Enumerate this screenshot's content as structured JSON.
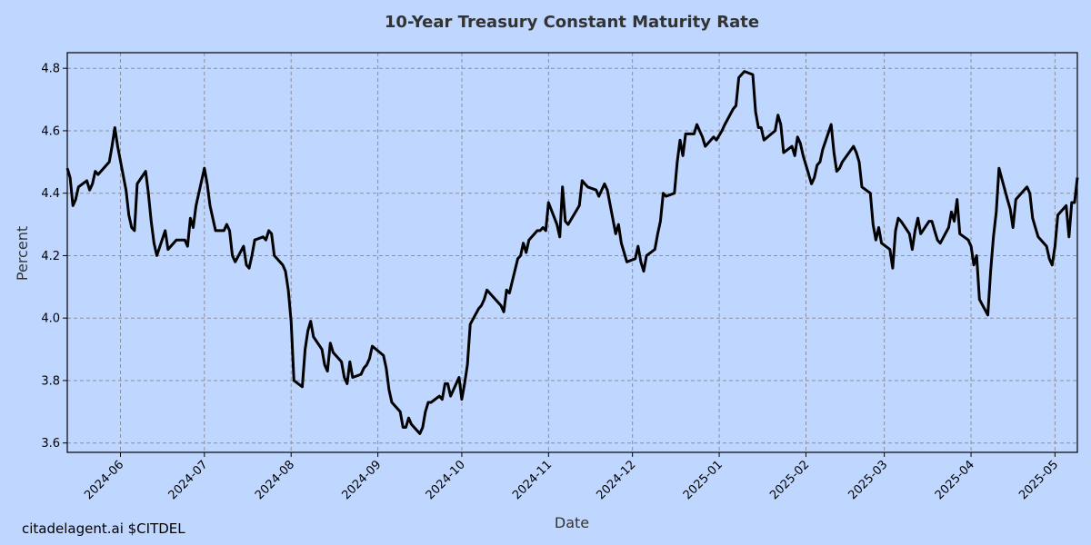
{
  "footer": "citadelagent.ai $CITDEL",
  "colors": {
    "background": "#bfd7ff",
    "line": "#000000",
    "grid": "#8a8f9e",
    "title": "#333333"
  },
  "chart_data": {
    "type": "line",
    "title": "10-Year Treasury Constant Maturity Rate",
    "xlabel": "Date",
    "ylabel": "Percent",
    "xlim": [
      "2024-05-13",
      "2025-05-09"
    ],
    "ylim": [
      3.57,
      4.85
    ],
    "xticks": [
      "2024-06",
      "2024-07",
      "2024-08",
      "2024-09",
      "2024-10",
      "2024-11",
      "2024-12",
      "2025-01",
      "2025-02",
      "2025-03",
      "2025-04",
      "2025-05"
    ],
    "yticks": [
      "3.6",
      "3.8",
      "4.0",
      "4.2",
      "4.4",
      "4.6",
      "4.8"
    ],
    "grid": true,
    "series": [
      {
        "x": [
          "2024-05-13",
          "2024-05-14",
          "2024-05-15",
          "2024-05-16",
          "2024-05-17",
          "2024-05-20",
          "2024-05-21",
          "2024-05-22",
          "2024-05-23",
          "2024-05-24",
          "2024-05-28",
          "2024-05-29",
          "2024-05-30",
          "2024-05-31",
          "2024-06-03",
          "2024-06-04",
          "2024-06-05",
          "2024-06-06",
          "2024-06-07",
          "2024-06-10",
          "2024-06-11",
          "2024-06-12",
          "2024-06-13",
          "2024-06-14",
          "2024-06-17",
          "2024-06-18",
          "2024-06-20",
          "2024-06-21",
          "2024-06-24",
          "2024-06-25",
          "2024-06-26",
          "2024-06-27",
          "2024-06-28",
          "2024-07-01",
          "2024-07-02",
          "2024-07-03",
          "2024-07-05",
          "2024-07-08",
          "2024-07-09",
          "2024-07-10",
          "2024-07-11",
          "2024-07-12",
          "2024-07-15",
          "2024-07-16",
          "2024-07-17",
          "2024-07-18",
          "2024-07-19",
          "2024-07-22",
          "2024-07-23",
          "2024-07-24",
          "2024-07-25",
          "2024-07-26",
          "2024-07-29",
          "2024-07-30",
          "2024-07-31",
          "2024-08-01",
          "2024-08-02",
          "2024-08-05",
          "2024-08-06",
          "2024-08-07",
          "2024-08-08",
          "2024-08-09",
          "2024-08-12",
          "2024-08-13",
          "2024-08-14",
          "2024-08-15",
          "2024-08-16",
          "2024-08-19",
          "2024-08-20",
          "2024-08-21",
          "2024-08-22",
          "2024-08-23",
          "2024-08-26",
          "2024-08-27",
          "2024-08-28",
          "2024-08-29",
          "2024-08-30",
          "2024-09-03",
          "2024-09-04",
          "2024-09-05",
          "2024-09-06",
          "2024-09-09",
          "2024-09-10",
          "2024-09-11",
          "2024-09-12",
          "2024-09-13",
          "2024-09-16",
          "2024-09-17",
          "2024-09-18",
          "2024-09-19",
          "2024-09-20",
          "2024-09-23",
          "2024-09-24",
          "2024-09-25",
          "2024-09-26",
          "2024-09-27",
          "2024-09-30",
          "2024-10-01",
          "2024-10-02",
          "2024-10-03",
          "2024-10-04",
          "2024-10-07",
          "2024-10-08",
          "2024-10-09",
          "2024-10-10",
          "2024-10-11",
          "2024-10-15",
          "2024-10-16",
          "2024-10-17",
          "2024-10-18",
          "2024-10-21",
          "2024-10-22",
          "2024-10-23",
          "2024-10-24",
          "2024-10-25",
          "2024-10-28",
          "2024-10-29",
          "2024-10-30",
          "2024-10-31",
          "2024-11-01",
          "2024-11-04",
          "2024-11-05",
          "2024-11-06",
          "2024-11-07",
          "2024-11-08",
          "2024-11-12",
          "2024-11-13",
          "2024-11-14",
          "2024-11-15",
          "2024-11-18",
          "2024-11-19",
          "2024-11-20",
          "2024-11-21",
          "2024-11-22",
          "2024-11-25",
          "2024-11-26",
          "2024-11-27",
          "2024-11-29",
          "2024-12-02",
          "2024-12-03",
          "2024-12-04",
          "2024-12-05",
          "2024-12-06",
          "2024-12-09",
          "2024-12-10",
          "2024-12-11",
          "2024-12-12",
          "2024-12-13",
          "2024-12-16",
          "2024-12-17",
          "2024-12-18",
          "2024-12-19",
          "2024-12-20",
          "2024-12-23",
          "2024-12-24",
          "2024-12-26",
          "2024-12-27",
          "2024-12-30",
          "2024-12-31",
          "2025-01-02",
          "2025-01-03",
          "2025-01-06",
          "2025-01-07",
          "2025-01-08",
          "2025-01-10",
          "2025-01-13",
          "2025-01-14",
          "2025-01-15",
          "2025-01-16",
          "2025-01-17",
          "2025-01-21",
          "2025-01-22",
          "2025-01-23",
          "2025-01-24",
          "2025-01-27",
          "2025-01-28",
          "2025-01-29",
          "2025-01-30",
          "2025-01-31",
          "2025-02-03",
          "2025-02-04",
          "2025-02-05",
          "2025-02-06",
          "2025-02-07",
          "2025-02-10",
          "2025-02-11",
          "2025-02-12",
          "2025-02-13",
          "2025-02-14",
          "2025-02-18",
          "2025-02-19",
          "2025-02-20",
          "2025-02-21",
          "2025-02-24",
          "2025-02-25",
          "2025-02-26",
          "2025-02-27",
          "2025-02-28",
          "2025-03-03",
          "2025-03-04",
          "2025-03-05",
          "2025-03-06",
          "2025-03-07",
          "2025-03-10",
          "2025-03-11",
          "2025-03-12",
          "2025-03-13",
          "2025-03-14",
          "2025-03-17",
          "2025-03-18",
          "2025-03-19",
          "2025-03-20",
          "2025-03-21",
          "2025-03-24",
          "2025-03-25",
          "2025-03-26",
          "2025-03-27",
          "2025-03-28",
          "2025-03-31",
          "2025-04-01",
          "2025-04-02",
          "2025-04-03",
          "2025-04-04",
          "2025-04-07",
          "2025-04-08",
          "2025-04-09",
          "2025-04-10",
          "2025-04-11",
          "2025-04-14",
          "2025-04-15",
          "2025-04-16",
          "2025-04-17",
          "2025-04-21",
          "2025-04-22",
          "2025-04-23",
          "2025-04-24",
          "2025-04-25",
          "2025-04-28",
          "2025-04-29",
          "2025-04-30",
          "2025-05-01",
          "2025-05-02",
          "2025-05-05",
          "2025-05-06",
          "2025-05-07",
          "2025-05-08",
          "2025-05-09"
        ],
        "y": [
          4.48,
          4.45,
          4.36,
          4.38,
          4.42,
          4.44,
          4.41,
          4.43,
          4.47,
          4.46,
          4.5,
          4.55,
          4.61,
          4.55,
          4.41,
          4.33,
          4.29,
          4.28,
          4.43,
          4.47,
          4.4,
          4.31,
          4.24,
          4.2,
          4.28,
          4.22,
          4.24,
          4.25,
          4.25,
          4.23,
          4.32,
          4.29,
          4.36,
          4.48,
          4.43,
          4.36,
          4.28,
          4.28,
          4.3,
          4.28,
          4.2,
          4.18,
          4.23,
          4.17,
          4.16,
          4.2,
          4.25,
          4.26,
          4.25,
          4.28,
          4.27,
          4.2,
          4.17,
          4.15,
          4.09,
          3.99,
          3.8,
          3.78,
          3.9,
          3.96,
          3.99,
          3.94,
          3.9,
          3.85,
          3.83,
          3.92,
          3.89,
          3.86,
          3.81,
          3.79,
          3.86,
          3.81,
          3.82,
          3.84,
          3.85,
          3.87,
          3.91,
          3.88,
          3.84,
          3.77,
          3.73,
          3.7,
          3.65,
          3.65,
          3.68,
          3.66,
          3.63,
          3.65,
          3.7,
          3.73,
          3.73,
          3.75,
          3.74,
          3.79,
          3.79,
          3.75,
          3.81,
          3.74,
          3.79,
          3.85,
          3.98,
          4.03,
          4.04,
          4.06,
          4.09,
          4.08,
          4.04,
          4.02,
          4.09,
          4.08,
          4.19,
          4.2,
          4.24,
          4.21,
          4.25,
          4.28,
          4.28,
          4.29,
          4.28,
          4.37,
          4.3,
          4.26,
          4.42,
          4.31,
          4.3,
          4.36,
          4.44,
          4.43,
          4.42,
          4.41,
          4.39,
          4.41,
          4.43,
          4.41,
          4.27,
          4.3,
          4.24,
          4.18,
          4.19,
          4.23,
          4.18,
          4.15,
          4.2,
          4.22,
          4.27,
          4.31,
          4.4,
          4.39,
          4.4,
          4.5,
          4.57,
          4.52,
          4.59,
          4.59,
          4.62,
          4.58,
          4.55,
          4.58,
          4.57,
          4.6,
          4.62,
          4.67,
          4.68,
          4.77,
          4.79,
          4.78,
          4.66,
          4.61,
          4.61,
          4.57,
          4.6,
          4.65,
          4.62,
          4.53,
          4.55,
          4.52,
          4.58,
          4.56,
          4.52,
          4.43,
          4.45,
          4.49,
          4.5,
          4.54,
          4.62,
          4.53,
          4.47,
          4.48,
          4.5,
          4.55,
          4.53,
          4.5,
          4.42,
          4.4,
          4.3,
          4.25,
          4.29,
          4.24,
          4.22,
          4.16,
          4.28,
          4.32,
          4.31,
          4.27,
          4.22,
          4.28,
          4.32,
          4.27,
          4.31,
          4.31,
          4.28,
          4.25,
          4.24,
          4.29,
          4.34,
          4.31,
          4.38,
          4.27,
          4.25,
          4.23,
          4.17,
          4.2,
          4.06,
          4.01,
          4.15,
          4.26,
          4.34,
          4.48,
          4.38,
          4.35,
          4.29,
          4.38,
          4.42,
          4.4,
          4.32,
          4.29,
          4.26,
          4.23,
          4.19,
          4.17,
          4.23,
          4.33,
          4.36,
          4.26,
          4.37,
          4.37,
          4.45
        ]
      }
    ]
  }
}
